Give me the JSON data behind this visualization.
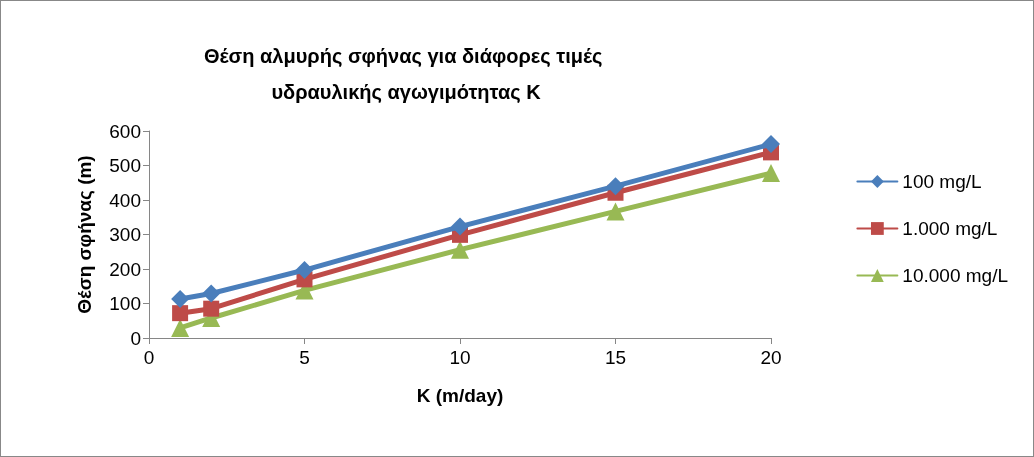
{
  "chart_data": {
    "type": "line",
    "title": "Θέση αλμυρής σφήνας για διάφορες τιμές υδραυλικής αγωγιμότητας K",
    "xlabel": "K (m/day)",
    "ylabel": "Θέση σφήνας (m)",
    "x": [
      1,
      2,
      5,
      10,
      15,
      20
    ],
    "series": [
      {
        "name": "100 mg/L",
        "color": "#4a7ebb",
        "marker": "diamond",
        "values": [
          113,
          129,
          197,
          323,
          440,
          562
        ]
      },
      {
        "name": "1.000 mg/L",
        "color": "#be4b48",
        "marker": "square",
        "values": [
          72,
          85,
          170,
          299,
          421,
          538
        ]
      },
      {
        "name": "10.000 mg/L",
        "color": "#98b954",
        "marker": "triangle",
        "values": [
          29,
          58,
          138,
          256,
          367,
          478
        ]
      }
    ],
    "xlim": [
      0,
      20
    ],
    "xticks": [
      0,
      5,
      10,
      15,
      20
    ],
    "ylim": [
      0,
      600
    ],
    "yticks": [
      0,
      100,
      200,
      300,
      400,
      500,
      600
    ],
    "grid": false,
    "legend": "right",
    "line_style": "solid"
  }
}
